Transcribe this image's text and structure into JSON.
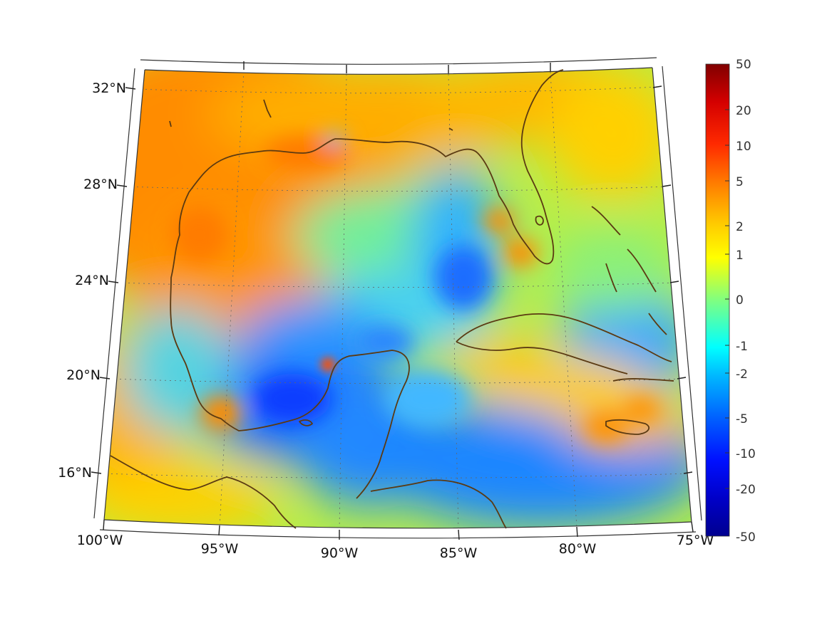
{
  "map": {
    "lon_range": [
      -100,
      -75
    ],
    "lat_range": [
      14,
      33
    ],
    "projection": "lambert-conformal (curved parallels)",
    "grid": "dotted graticule, 5° lon / 4° lat",
    "coastline_color": "#5b3a12",
    "lat_labels": [
      "32°N",
      "28°N",
      "24°N",
      "20°N",
      "16°N"
    ],
    "lon_labels": [
      "100°W",
      "95°W",
      "90°W",
      "85°W",
      "80°W",
      "75°W"
    ]
  },
  "colorbar": {
    "scale": "nonlinear (symmetric, log-like)",
    "colormap": "jet",
    "colors": [
      "#00008f",
      "#0000ff",
      "#0080ff",
      "#00ffff",
      "#80ff80",
      "#ffff00",
      "#ff8000",
      "#ff0000",
      "#800000"
    ],
    "tick_labels": [
      "50",
      "20",
      "10",
      "5",
      "2",
      "1",
      "0",
      "-1",
      "-2",
      "-5",
      "-10",
      "-20",
      "-50"
    ]
  },
  "regions": [
    {
      "name": "northwest-high",
      "color": "#ff8c00"
    },
    {
      "name": "bay-of-campeche-low",
      "color": "#0a3cff"
    },
    {
      "name": "central-gulf-low",
      "color": "#2f9bff"
    },
    {
      "name": "caribbean-low",
      "color": "#1f8bff"
    },
    {
      "name": "florida-high",
      "color": "#ffb000"
    },
    {
      "name": "east-high",
      "color": "#ffd000"
    }
  ]
}
